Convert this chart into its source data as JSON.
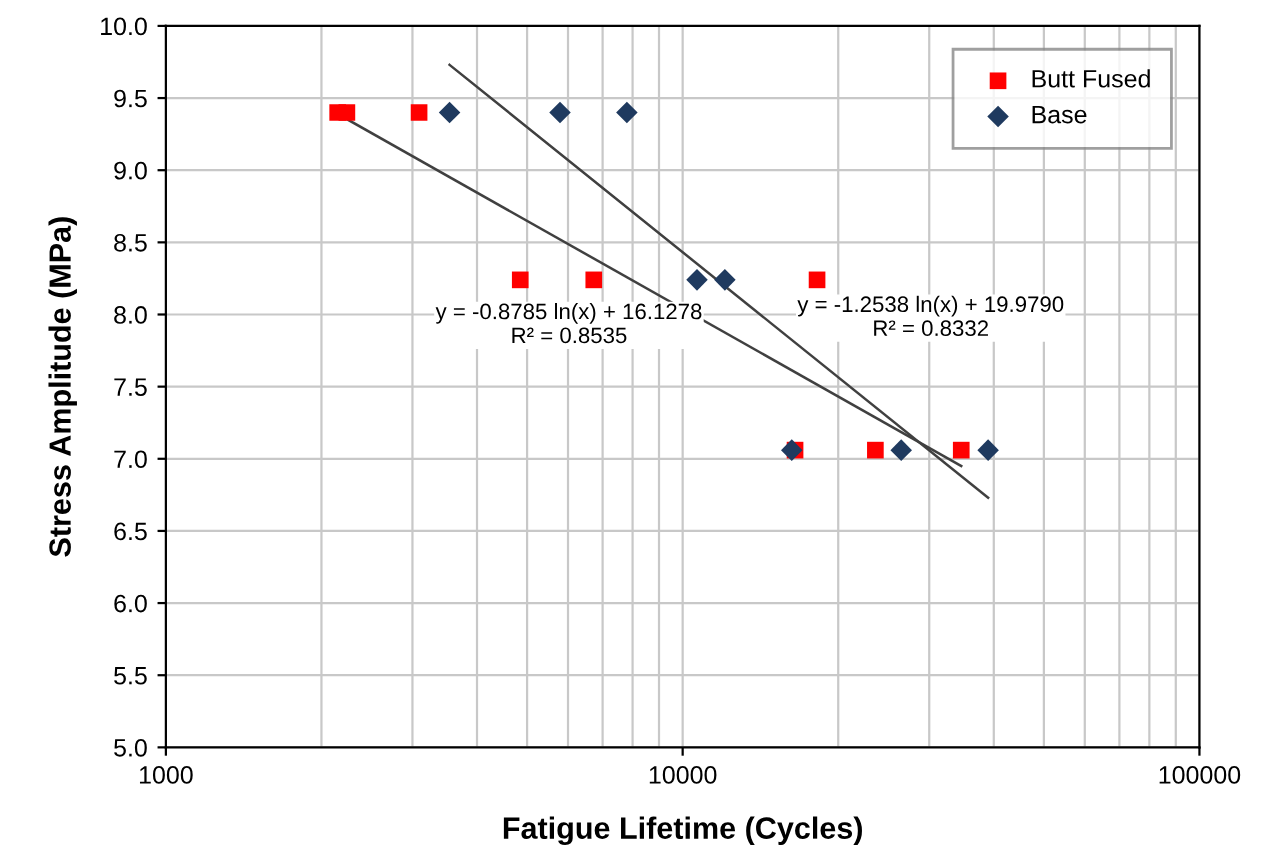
{
  "chart_data": {
    "type": "scatter",
    "xlabel": "Fatigue Lifetime (Cycles)",
    "ylabel": "Stress Amplitude (MPa)",
    "log": "x",
    "xlim": [
      1000,
      100000
    ],
    "xticks": [
      1000,
      10000,
      100000
    ],
    "ylim": [
      5.0,
      10.0
    ],
    "yticks": [
      {
        "value": 5.0,
        "label": "5.0"
      },
      {
        "value": 5.5,
        "label": "5.5"
      },
      {
        "value": 6.0,
        "label": "6.0"
      },
      {
        "value": 6.5,
        "label": "6.5"
      },
      {
        "value": 7.0,
        "label": "7.0"
      },
      {
        "value": 7.5,
        "label": "7.5"
      },
      {
        "value": 8.0,
        "label": "8.0"
      },
      {
        "value": 8.5,
        "label": "8.5"
      },
      {
        "value": 9.0,
        "label": "9.0"
      },
      {
        "value": 9.5,
        "label": "9.5"
      },
      {
        "value": 10.0,
        "label": "10.0"
      }
    ],
    "grid": true,
    "legend": "top right",
    "series": [
      {
        "name": "Butt Fused",
        "color": "#ff0000",
        "marker": "square",
        "x": [
          2150,
          2240,
          3090,
          4850,
          6730,
          18200,
          16500,
          23600,
          34600
        ],
        "values": [
          9.4,
          9.4,
          9.4,
          8.24,
          8.24,
          8.24,
          7.06,
          7.06,
          7.06
        ]
      },
      {
        "name": "Base",
        "color": "#1f3a5f",
        "marker": "diamond",
        "x": [
          3540,
          5790,
          7800,
          10660,
          12070,
          16260,
          26480,
          39000
        ],
        "values": [
          9.4,
          9.4,
          9.4,
          8.24,
          8.24,
          7.06,
          7.06,
          7.06
        ]
      },
      {
        "type": "line",
        "color": "#404040",
        "marker": "none",
        "x": [
          2150,
          34600
        ],
        "values": [
          9.39,
          6.95
        ]
      },
      {
        "type": "line",
        "color": "#404040",
        "marker": "none",
        "x": [
          3540,
          39000
        ],
        "values": [
          9.73,
          6.73
        ]
      }
    ],
    "annotations": [
      "y = -0.8785 ln(x) + 16.1278\nR² = 0.8535",
      "y = -1.2538 ln(x) + 19.9790\nR² = 0.8332"
    ]
  }
}
